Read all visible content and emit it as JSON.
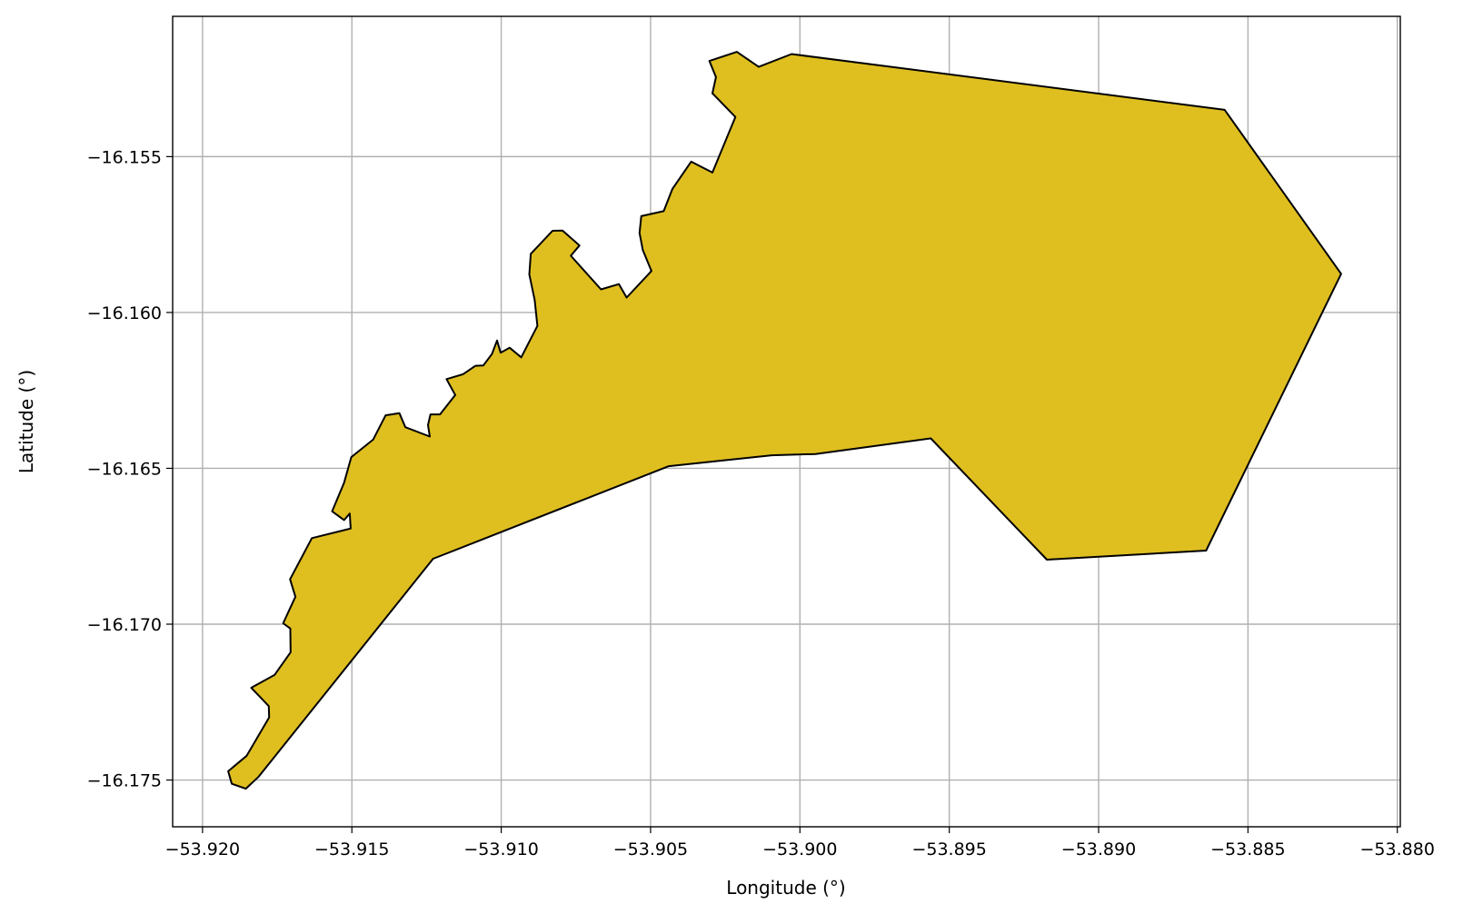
{
  "chart_data": {
    "type": "map",
    "xlabel": "Longitude (°)",
    "ylabel": "Latitude (°)",
    "xlim": [
      -53.921,
      -53.8799
    ],
    "ylim": [
      -16.1765,
      -16.1505
    ],
    "grid": true,
    "fill_color": "#dfbe20",
    "edge_color": "#000000",
    "x_ticks": [
      {
        "value": -53.92,
        "label": "−53.920"
      },
      {
        "value": -53.915,
        "label": "−53.915"
      },
      {
        "value": -53.91,
        "label": "−53.910"
      },
      {
        "value": -53.905,
        "label": "−53.905"
      },
      {
        "value": -53.9,
        "label": "−53.900"
      },
      {
        "value": -53.895,
        "label": "−53.895"
      },
      {
        "value": -53.89,
        "label": "−53.890"
      },
      {
        "value": -53.885,
        "label": "−53.885"
      },
      {
        "value": -53.88,
        "label": "−53.880"
      }
    ],
    "y_ticks": [
      {
        "value": -16.155,
        "label": "−16.155"
      },
      {
        "value": -16.16,
        "label": "−16.160"
      },
      {
        "value": -16.165,
        "label": "−16.165"
      },
      {
        "value": -16.17,
        "label": "−16.170"
      },
      {
        "value": -16.175,
        "label": "−16.175"
      }
    ],
    "polygon": [
      [
        -53.90028,
        -16.15171
      ],
      [
        -53.88578,
        -16.1535
      ],
      [
        -53.88188,
        -16.15876
      ],
      [
        -53.8864,
        -16.16764
      ],
      [
        -53.89173,
        -16.16793
      ],
      [
        -53.89562,
        -16.16404
      ],
      [
        -53.89948,
        -16.16454
      ],
      [
        -53.90094,
        -16.16458
      ],
      [
        -53.90439,
        -16.16493
      ],
      [
        -53.91228,
        -16.1679
      ],
      [
        -53.91812,
        -16.17489
      ],
      [
        -53.91855,
        -16.17528
      ],
      [
        -53.91902,
        -16.17512
      ],
      [
        -53.91914,
        -16.17472
      ],
      [
        -53.91852,
        -16.17422
      ],
      [
        -53.91777,
        -16.17299
      ],
      [
        -53.91778,
        -16.17263
      ],
      [
        -53.91837,
        -16.17204
      ],
      [
        -53.91759,
        -16.17163
      ],
      [
        -53.91705,
        -16.1709
      ],
      [
        -53.91706,
        -16.17014
      ],
      [
        -53.9173,
        -16.16997
      ],
      [
        -53.91689,
        -16.16912
      ],
      [
        -53.91707,
        -16.16856
      ],
      [
        -53.91634,
        -16.16724
      ],
      [
        -53.91504,
        -16.16693
      ],
      [
        -53.91507,
        -16.16645
      ],
      [
        -53.91526,
        -16.16666
      ],
      [
        -53.91566,
        -16.16638
      ],
      [
        -53.91526,
        -16.16546
      ],
      [
        -53.91502,
        -16.16464
      ],
      [
        -53.91429,
        -16.16408
      ],
      [
        -53.91387,
        -16.1633
      ],
      [
        -53.91341,
        -16.16323
      ],
      [
        -53.91321,
        -16.16368
      ],
      [
        -53.91239,
        -16.16398
      ],
      [
        -53.91245,
        -16.16361
      ],
      [
        -53.91237,
        -16.16327
      ],
      [
        -53.91205,
        -16.16327
      ],
      [
        -53.91154,
        -16.16265
      ],
      [
        -53.91183,
        -16.16214
      ],
      [
        -53.91128,
        -16.16198
      ],
      [
        -53.91086,
        -16.16171
      ],
      [
        -53.9106,
        -16.1617
      ],
      [
        -53.91031,
        -16.16133
      ],
      [
        -53.91014,
        -16.1609
      ],
      [
        -53.91002,
        -16.16129
      ],
      [
        -53.90972,
        -16.16113
      ],
      [
        -53.90933,
        -16.16144
      ],
      [
        -53.90879,
        -16.16043
      ],
      [
        -53.90888,
        -16.1596
      ],
      [
        -53.90906,
        -16.15878
      ],
      [
        -53.90901,
        -16.15812
      ],
      [
        -53.90828,
        -16.15738
      ],
      [
        -53.90795,
        -16.15737
      ],
      [
        -53.90738,
        -16.15785
      ],
      [
        -53.90767,
        -16.15818
      ],
      [
        -53.90666,
        -16.15926
      ],
      [
        -53.90606,
        -16.15909
      ],
      [
        -53.9058,
        -16.15952
      ],
      [
        -53.90497,
        -16.15867
      ],
      [
        -53.90526,
        -16.158
      ],
      [
        -53.90537,
        -16.15745
      ],
      [
        -53.90531,
        -16.15691
      ],
      [
        -53.90456,
        -16.15675
      ],
      [
        -53.90427,
        -16.15604
      ],
      [
        -53.90364,
        -16.15516
      ],
      [
        -53.90293,
        -16.15551
      ],
      [
        -53.90216,
        -16.15373
      ],
      [
        -53.90293,
        -16.15297
      ],
      [
        -53.90281,
        -16.15245
      ],
      [
        -53.90303,
        -16.15193
      ],
      [
        -53.90211,
        -16.15164
      ],
      [
        -53.90138,
        -16.15212
      ]
    ]
  }
}
